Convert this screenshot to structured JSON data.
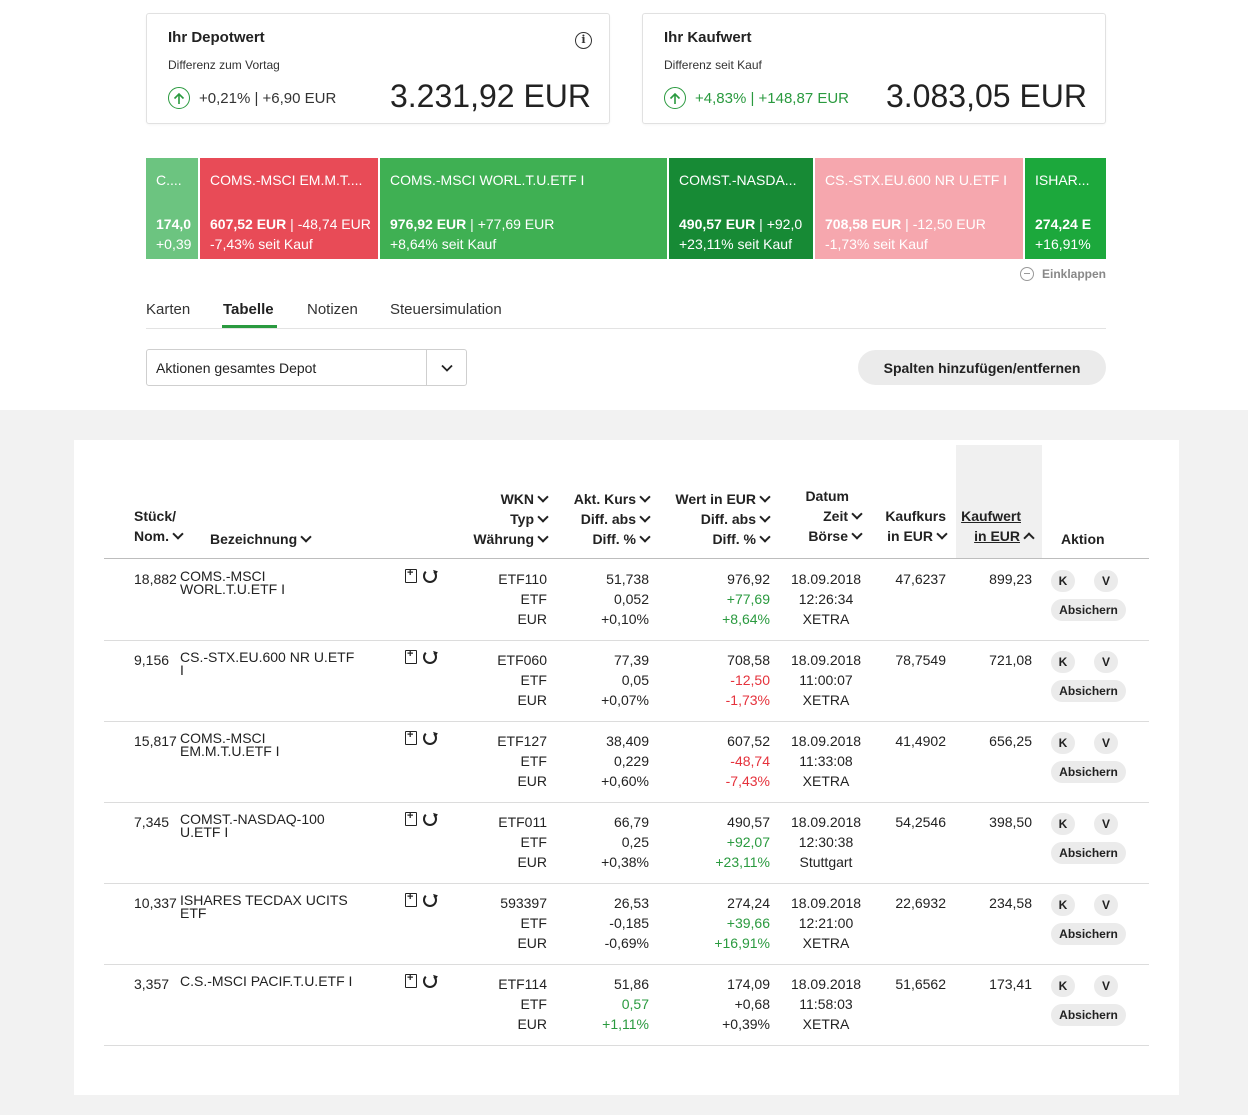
{
  "depot": {
    "title": "Ihr Depotwert",
    "subtitle": "Differenz zum Vortag",
    "diff": "+0,21% | +6,90 EUR",
    "value": "3.231,92 EUR"
  },
  "kaufwert": {
    "title": "Ihr Kaufwert",
    "subtitle": "Differenz seit Kauf",
    "diff": "+4,83% | +148,87 EUR",
    "value": "3.083,05 EUR"
  },
  "colors": {
    "green": "#2a9a3f",
    "red": "#e5323c",
    "tile_green_light": "#6cc480",
    "tile_green": "#3fb053",
    "tile_green_dark": "#178a35",
    "tile_red": "#e84b57",
    "tile_pink": "#f6a7ae",
    "tile_green_bright": "#1ca83c"
  },
  "tiles": [
    {
      "name": "C....",
      "l2a": "174,0",
      "l2b": "",
      "l3": "+0,39",
      "color": "tile_green_light"
    },
    {
      "name": "COMS.-MSCI EM.M.T....",
      "l2a": "607,52 EUR",
      "l2b": " | -48,74 EUR",
      "l3": "-7,43% seit Kauf",
      "color": "tile_red"
    },
    {
      "name": "COMS.-MSCI WORL.T.U.ETF I",
      "l2a": "976,92 EUR",
      "l2b": " | +77,69 EUR",
      "l3": "+8,64% seit Kauf",
      "color": "tile_green"
    },
    {
      "name": "COMST.-NASDA...",
      "l2a": "490,57 EUR",
      "l2b": " | +92,0",
      "l3": "+23,11% seit Kauf",
      "color": "tile_green_dark"
    },
    {
      "name": "CS.-STX.EU.600 NR U.ETF I",
      "l2a": "708,58 EUR",
      "l2b": " | -12,50 EUR",
      "l3": "-1,73% seit Kauf",
      "color": "tile_pink"
    },
    {
      "name": "ISHAR...",
      "l2a": "274,24 E",
      "l2b": "",
      "l3": "+16,91%",
      "color": "tile_green_bright"
    }
  ],
  "collapse_label": "Einklappen",
  "tabs": [
    "Karten",
    "Tabelle",
    "Notizen",
    "Steuersimulation"
  ],
  "select": {
    "value": "Aktionen gesamtes Depot"
  },
  "columns_button": "Spalten hinzufügen/entfernen",
  "table": {
    "headers": {
      "stueck": [
        "Stück/",
        "Nom."
      ],
      "bezeichnung": "Bezeichnung",
      "wkn": [
        "WKN",
        "Typ",
        "Währung"
      ],
      "kurs": [
        "Akt. Kurs",
        "Diff. abs",
        "Diff. %"
      ],
      "wert": [
        "Wert in EUR",
        "Diff. abs",
        "Diff. %"
      ],
      "datum": [
        "Datum",
        "Zeit",
        "Börse"
      ],
      "kaufkurs": [
        "Kaufkurs",
        "in EUR"
      ],
      "kaufwert": [
        "Kaufwert",
        "in EUR"
      ],
      "aktion": "Aktion"
    },
    "rows": [
      {
        "stueck": "18,882",
        "name": "COMS.-MSCI WORL.T.U.ETF I",
        "wkn": "ETF110",
        "typ": "ETF",
        "waehrung": "EUR",
        "kurs": "51,738",
        "kurs_abs": "0,052",
        "kurs_pct": "+0,10%",
        "kurs_color": "",
        "wert": "976,92",
        "wert_abs": "+77,69",
        "wert_pct": "+8,64%",
        "wert_color": "pos",
        "datum": "18.09.2018",
        "zeit": "12:26:34",
        "boerse": "XETRA",
        "kaufkurs": "47,6237",
        "kaufwert": "899,23"
      },
      {
        "stueck": "9,156",
        "name": "CS.-STX.EU.600 NR U.ETF I",
        "wkn": "ETF060",
        "typ": "ETF",
        "waehrung": "EUR",
        "kurs": "77,39",
        "kurs_abs": "0,05",
        "kurs_pct": "+0,07%",
        "kurs_color": "",
        "wert": "708,58",
        "wert_abs": "-12,50",
        "wert_pct": "-1,73%",
        "wert_color": "neg",
        "datum": "18.09.2018",
        "zeit": "11:00:07",
        "boerse": "XETRA",
        "kaufkurs": "78,7549",
        "kaufwert": "721,08"
      },
      {
        "stueck": "15,817",
        "name": "COMS.-MSCI EM.M.T.U.ETF I",
        "wkn": "ETF127",
        "typ": "ETF",
        "waehrung": "EUR",
        "kurs": "38,409",
        "kurs_abs": "0,229",
        "kurs_pct": "+0,60%",
        "kurs_color": "",
        "wert": "607,52",
        "wert_abs": "-48,74",
        "wert_pct": "-7,43%",
        "wert_color": "neg",
        "datum": "18.09.2018",
        "zeit": "11:33:08",
        "boerse": "XETRA",
        "kaufkurs": "41,4902",
        "kaufwert": "656,25"
      },
      {
        "stueck": "7,345",
        "name": "COMST.-NASDAQ-100 U.ETF I",
        "wkn": "ETF011",
        "typ": "ETF",
        "waehrung": "EUR",
        "kurs": "66,79",
        "kurs_abs": "0,25",
        "kurs_pct": "+0,38%",
        "kurs_color": "",
        "wert": "490,57",
        "wert_abs": "+92,07",
        "wert_pct": "+23,11%",
        "wert_color": "pos",
        "datum": "18.09.2018",
        "zeit": "12:30:38",
        "boerse": "Stuttgart",
        "kaufkurs": "54,2546",
        "kaufwert": "398,50"
      },
      {
        "stueck": "10,337",
        "name": "ISHARES TECDAX UCITS ETF",
        "wkn": "593397",
        "typ": "ETF",
        "waehrung": "EUR",
        "kurs": "26,53",
        "kurs_abs": "-0,185",
        "kurs_pct": "-0,69%",
        "kurs_color": "",
        "wert": "274,24",
        "wert_abs": "+39,66",
        "wert_pct": "+16,91%",
        "wert_color": "pos",
        "datum": "18.09.2018",
        "zeit": "12:21:00",
        "boerse": "XETRA",
        "kaufkurs": "22,6932",
        "kaufwert": "234,58"
      },
      {
        "stueck": "3,357",
        "name": "C.S.-MSCI PACIF.T.U.ETF I",
        "wkn": "ETF114",
        "typ": "ETF",
        "waehrung": "EUR",
        "kurs": "51,86",
        "kurs_abs": "0,57",
        "kurs_pct": "+1,11%",
        "kurs_color": "pos",
        "wert": "174,09",
        "wert_abs": "+0,68",
        "wert_pct": "+0,39%",
        "wert_color": "",
        "datum": "18.09.2018",
        "zeit": "11:58:03",
        "boerse": "XETRA",
        "kaufkurs": "51,6562",
        "kaufwert": "173,41"
      }
    ],
    "actions": {
      "buy": "K",
      "sell": "V",
      "hedge": "Absichern"
    }
  }
}
